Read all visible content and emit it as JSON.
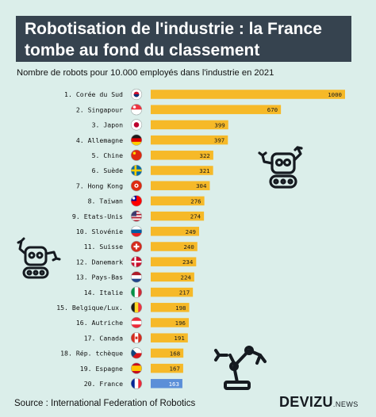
{
  "header": {
    "title_line1": "Robotisation de l'industrie : la France",
    "title_line2": "tombe au fond du classement"
  },
  "chart_data": {
    "type": "bar",
    "orientation": "horizontal",
    "title": "Robotisation de l'industrie : la France tombe au fond du classement",
    "subtitle": "Nombre de robots pour 10.000 employés dans l'industrie en 2021",
    "categories": [
      "1. Corée du Sud",
      "2. Singapour",
      "3. Japon",
      "4. Allemagne",
      "5. Chine",
      "6. Suède",
      "7. Hong Kong",
      "8. Taïwan",
      "9. Etats-Unis",
      "10. Slovénie",
      "11. Suisse",
      "12. Danemark",
      "13. Pays-Bas",
      "14. Italie",
      "15. Belgique/Lux.",
      "16. Autriche",
      "17. Canada",
      "18. Rép. tchèque",
      "19. Espagne",
      "20. France"
    ],
    "values": [
      1000,
      670,
      399,
      397,
      322,
      321,
      304,
      276,
      274,
      249,
      240,
      234,
      224,
      217,
      198,
      196,
      191,
      168,
      167,
      163
    ],
    "flags": [
      "kr",
      "sg",
      "jp",
      "de",
      "cn",
      "se",
      "hk",
      "tw",
      "us",
      "si",
      "ch",
      "dk",
      "nl",
      "it",
      "be",
      "at",
      "ca",
      "cz",
      "es",
      "fr"
    ],
    "xlim": [
      0,
      1000
    ],
    "colors": {
      "bar": "#f6b928",
      "highlight": "#5b8fd8",
      "highlight_index": 19
    },
    "grid": false
  },
  "footer": {
    "source": "Source : International Federation of Robotics",
    "logo_main": "DEVIZU",
    "logo_suffix": ".NEWS"
  },
  "decorations": [
    "robot-arm-icon",
    "robot-icon",
    "robot-icon"
  ]
}
